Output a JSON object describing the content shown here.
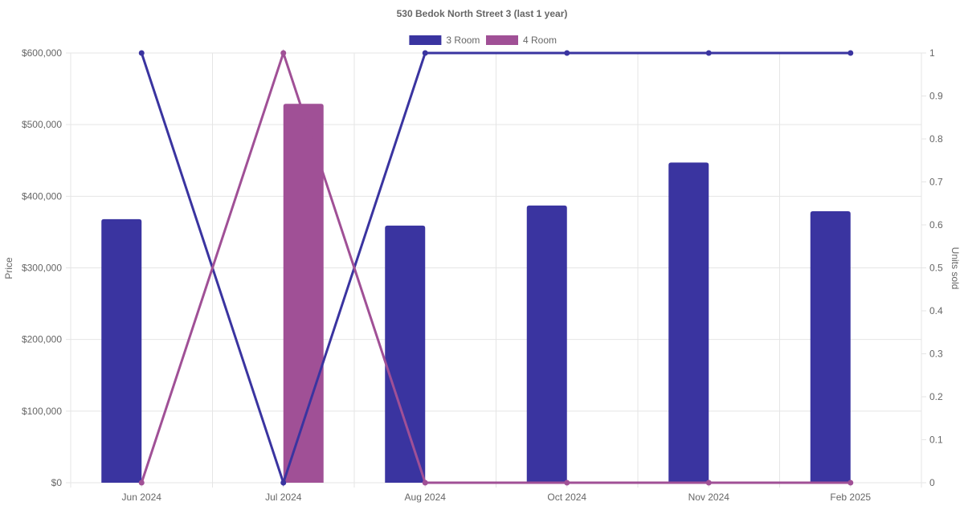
{
  "chart_data": {
    "type": "bar",
    "title": "530 Bedok North Street 3 (last 1 year)",
    "categories": [
      "Jun 2024",
      "Jul 2024",
      "Aug 2024",
      "Oct 2024",
      "Nov 2024",
      "Feb 2025"
    ],
    "series": [
      {
        "name": "3 Room",
        "color": "#3a34a0",
        "price": [
          368000,
          null,
          359000,
          387000,
          447000,
          379000
        ],
        "units_sold": [
          1,
          0,
          1,
          1,
          1,
          1
        ]
      },
      {
        "name": "4 Room",
        "color": "#a05096",
        "price": [
          null,
          529000,
          null,
          null,
          null,
          null
        ],
        "units_sold": [
          0,
          1,
          0,
          0,
          0,
          0
        ]
      }
    ],
    "y_left": {
      "label": "Price",
      "min": 0,
      "max": 600000,
      "ticks": [
        "$0",
        "$100,000",
        "$200,000",
        "$300,000",
        "$400,000",
        "$500,000",
        "$600,000"
      ]
    },
    "y_right": {
      "label": "Units sold",
      "min": 0,
      "max": 1,
      "ticks": [
        "0",
        "0.1",
        "0.2",
        "0.3",
        "0.4",
        "0.5",
        "0.6",
        "0.7",
        "0.8",
        "0.9",
        "1"
      ]
    },
    "legend_position": "top-center",
    "grid": true
  }
}
